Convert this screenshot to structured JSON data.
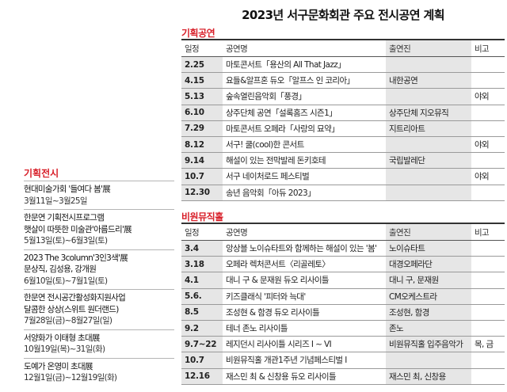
{
  "title": "2023년 서구문화회관 주요 전시공연 계획",
  "planned": {
    "label": "기획공연",
    "headers": {
      "date": "일정",
      "name": "공연명",
      "perf": "출연진",
      "note": "비고"
    },
    "rows": [
      {
        "date": "2.25",
        "name": "마토콘서트「용산의 All That Jazz」",
        "perf": "",
        "note": ""
      },
      {
        "date": "4.15",
        "name": "요들&알프혼 듀오「알프스 인 코리아」",
        "perf": "내한공연",
        "note": ""
      },
      {
        "date": "5.13",
        "name": "숲속열린음악회「풍경」",
        "perf": "",
        "note": "야외"
      },
      {
        "date": "6.10",
        "name": "상주단체 공연「설록홈즈 시즌1」",
        "perf": "상주단체 지오뮤직",
        "note": ""
      },
      {
        "date": "7.29",
        "name": "마토콘서트 오페라「사랑의 묘약」",
        "perf": "지트리아트",
        "note": ""
      },
      {
        "date": "8.12",
        "name": "서구! 쿨(cool)한 콘서트",
        "perf": "",
        "note": "야외"
      },
      {
        "date": "9.14",
        "name": "해설이 있는 전막발레 돈키호테",
        "perf": "국립발레단",
        "note": ""
      },
      {
        "date": "10.7",
        "name": "서구 네이처로드 페스티벌",
        "perf": "",
        "note": "야외"
      },
      {
        "date": "12.30",
        "name": "송년 음악회「아듀 2023」",
        "perf": "",
        "note": ""
      }
    ]
  },
  "virwon": {
    "label": "비원뮤직홀",
    "headers": {
      "date": "일정",
      "name": "공연명",
      "perf": "출연진",
      "note": "비고"
    },
    "rows": [
      {
        "date": "3.4",
        "name": "앙상블 노이슈타트와 함께하는 해설이 있는 '봄'",
        "perf": "노이슈타트",
        "note": ""
      },
      {
        "date": "3.18",
        "name": "오페라 렉처콘서트〈리골레토〉",
        "perf": "대경오페라단",
        "note": ""
      },
      {
        "date": "4.1",
        "name": "대니 구 & 문재원 듀오 리사이틀",
        "perf": "대니 구, 문재원",
        "note": ""
      },
      {
        "date": "5.6.",
        "name": "키즈클래식 '피터와 늑대'",
        "perf": "CM오케스트라",
        "note": ""
      },
      {
        "date": "8.5",
        "name": "조성현 & 함경 듀오 리사이틀",
        "perf": "조성현, 함경",
        "note": ""
      },
      {
        "date": "9.2",
        "name": "테너 존노 리사이틀",
        "perf": "존노",
        "note": ""
      },
      {
        "date": "9.7~22",
        "name": "레지던시 리사이틀 시리즈 Ⅰ ~ Ⅵ",
        "perf": "비원뮤직홀 입주음악가",
        "note": "목, 금"
      },
      {
        "date": "10.7",
        "name": "비원뮤직홀 개관1주년 기념페스티벌 Ⅰ",
        "perf": "",
        "note": ""
      },
      {
        "date": "12.16",
        "name": "재스민 최 & 신창용 듀오 리사이틀",
        "perf": "재스민 최, 신창용",
        "note": ""
      }
    ]
  },
  "exhibitions": {
    "label": "기획전시",
    "items": [
      {
        "lines": [
          "현대미술가회 '들여다 봄'展"
        ],
        "dates": "3월11일~3월25일"
      },
      {
        "lines": [
          "한문연 기획전시프로그램",
          "햇살이 따뜻한 미술관'아름드리'展"
        ],
        "dates": "5월13일(토)~6월3일(토)"
      },
      {
        "lines": [
          "2023 The 3column'3인3색'展",
          "문상직, 김성용, 강개원"
        ],
        "dates": "6월10일(토)~7월1일(토)"
      },
      {
        "lines": [
          "한문연 전시공간활성화지원사업",
          "달콤한 상상(스위트 원더랜드)"
        ],
        "dates": "7월28일(금)~8월27일(일)"
      },
      {
        "lines": [
          "서양화가 이태형 초대展"
        ],
        "dates": "10월19일(목)~31일(화)"
      },
      {
        "lines": [
          "도예가 온영미 초대展"
        ],
        "dates": "12월1일(금)~12월19일(화)"
      }
    ]
  }
}
